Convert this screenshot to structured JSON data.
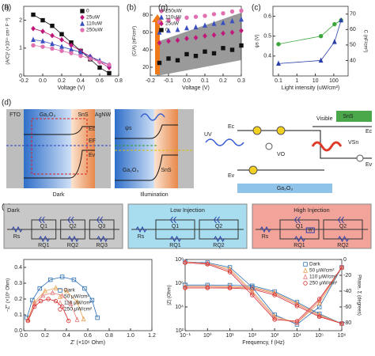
{
  "chart_data": [
    {
      "type": "scatter",
      "label": "(a)",
      "xlabel": "Voltage (V)",
      "ylabel": "(A/C)² (×10¹⁴ cm⁴ F⁻²)",
      "xlim": [
        -0.2,
        0.8
      ],
      "xticks": [
        -0.2,
        {
          "value": 0,
          "label": "0.0"
        },
        0.2,
        0.4,
        0.6,
        0.8
      ],
      "ylim": [
        0,
        2.5
      ],
      "yticks": [
        0,
        1,
        2
      ],
      "lines": true,
      "legend": "top-right",
      "series": [
        {
          "name": "0",
          "color": "#111111",
          "marker": "square",
          "x": [
            -0.1,
            0,
            0.1,
            0.2,
            0.3,
            0.4,
            0.5,
            0.6,
            0.7
          ],
          "values": [
            2.2,
            2.0,
            1.8,
            1.5,
            1.2,
            0.9,
            0.6,
            0.3,
            0.1
          ]
        },
        {
          "name": "25uW",
          "color": "#c0187a",
          "marker": "diamond",
          "x": [
            -0.1,
            0,
            0.1,
            0.2,
            0.3,
            0.4,
            0.5,
            0.6,
            0.7
          ],
          "values": [
            1.7,
            1.6,
            1.45,
            1.3,
            1.1,
            0.9,
            0.7,
            0.5,
            0.3
          ]
        },
        {
          "name": "110uW",
          "color": "#3a4fc0",
          "marker": "triangle",
          "x": [
            -0.1,
            0,
            0.1,
            0.2,
            0.3,
            0.4,
            0.5,
            0.6,
            0.7
          ],
          "values": [
            1.3,
            1.25,
            1.15,
            1.05,
            0.95,
            0.85,
            0.7,
            0.55,
            0.4
          ]
        },
        {
          "name": "250uW",
          "color": "#e070b0",
          "marker": "circle",
          "x": [
            -0.1,
            0,
            0.1,
            0.2,
            0.3,
            0.4,
            0.5,
            0.6,
            0.7
          ],
          "values": [
            1.1,
            1.05,
            0.98,
            0.9,
            0.82,
            0.72,
            0.62,
            0.5,
            0.4
          ]
        }
      ]
    },
    {
      "type": "scatter",
      "label": "(b)",
      "xlabel": "Voltage (V)",
      "ylabel": "(C/A) (nF/cm²)",
      "xlim": [
        -0.2,
        0.3
      ],
      "xticks": [
        -0.2,
        -0.1,
        {
          "value": 0,
          "label": "0.0"
        },
        0.1,
        0.2,
        0.3
      ],
      "ylim": [
        10,
        90
      ],
      "yticks": [
        20,
        40,
        60,
        80
      ],
      "band": true,
      "legend": "top-left",
      "series": [
        {
          "name": "250uW",
          "color": "#e070b0",
          "marker": "circle",
          "x": [
            -0.15,
            -0.1,
            -0.05,
            0,
            0.05,
            0.1,
            0.15,
            0.2,
            0.25,
            0.3
          ],
          "values": [
            72,
            74,
            75,
            77,
            78,
            79,
            81,
            82,
            84,
            85
          ]
        },
        {
          "name": "110uW",
          "color": "#3a4fc0",
          "marker": "triangle",
          "x": [
            -0.15,
            -0.1,
            -0.05,
            0,
            0.05,
            0.1,
            0.15,
            0.2,
            0.25,
            0.3
          ],
          "values": [
            60,
            62,
            63,
            65,
            66,
            68,
            70,
            71,
            73,
            75
          ]
        },
        {
          "name": "25uW",
          "color": "#c0187a",
          "marker": "diamond",
          "x": [
            -0.15,
            -0.1,
            -0.05,
            0,
            0.05,
            0.1,
            0.15,
            0.2,
            0.25,
            0.3
          ],
          "values": [
            48,
            50,
            51,
            53,
            54,
            56,
            57,
            59,
            60,
            62
          ]
        },
        {
          "name": "0",
          "color": "#111111",
          "marker": "square",
          "x": [
            -0.15,
            -0.1,
            -0.05,
            0,
            0.05,
            0.1,
            0.15,
            0.2,
            0.25,
            0.3
          ],
          "values": [
            25,
            30,
            28,
            35,
            33,
            38,
            36,
            42,
            40,
            45
          ]
        }
      ]
    },
    {
      "type": "scatter",
      "label": "(c)",
      "xlabel": "Light intensity (uW/cm²)",
      "ylabel": "ψs (V)",
      "y2label": "C (nF/cm²)",
      "xlog": true,
      "xlim": [
        0.05,
        600
      ],
      "xticks": [
        0.1,
        1,
        10,
        100
      ],
      "ylim": [
        0.3,
        0.65
      ],
      "yticks": [
        0.4,
        0.5,
        0.6
      ],
      "y2lim": [
        30,
        75
      ],
      "y2ticks": [
        40,
        50,
        60,
        70
      ],
      "lines": true,
      "series": [
        {
          "color": "#3aa63a",
          "marker": "circle",
          "x": [
            0.1,
            20,
            110,
            250
          ],
          "values": [
            0.46,
            0.5,
            0.56,
            0.58
          ]
        },
        {
          "color": "#2a3fa8",
          "marker": "triangle",
          "axis": "y2",
          "x": [
            0.1,
            20,
            110,
            250
          ],
          "values": [
            38,
            40,
            52,
            66
          ]
        }
      ]
    },
    {
      "type": "scatter",
      "label": "(f)",
      "xlabel": "Z' (×10⁶ Ohm)",
      "ylabel": "−Z'' (×10⁶ Ohm)",
      "xlim": [
        0,
        1.2
      ],
      "xticks": [
        {
          "value": 0,
          "label": "0.0"
        },
        0.2,
        0.4,
        0.6,
        0.8,
        {
          "value": 1,
          "label": "1.0"
        },
        1.2
      ],
      "ylim": [
        0,
        0.45
      ],
      "yticks": [
        {
          "value": 0,
          "label": "0.0"
        },
        0.1,
        0.2,
        0.3,
        0.4
      ],
      "lines": true,
      "legend": "center-right",
      "series": [
        {
          "name": "Dark",
          "color": "#2a6fb5",
          "marker": "square",
          "open": true,
          "x": [
            0.03,
            0.08,
            0.15,
            0.25,
            0.36,
            0.47,
            0.57,
            0.64,
            0.69
          ],
          "values": [
            0.082,
            0.193,
            0.267,
            0.322,
            0.34,
            0.322,
            0.267,
            0.193,
            0.082
          ]
        },
        {
          "name": "50 μW/cm²",
          "color": "#e8a050",
          "marker": "triangle",
          "open": true,
          "x": [
            0.04,
            0.1,
            0.2,
            0.3,
            0.4,
            0.5,
            0.56
          ],
          "values": [
            0.073,
            0.181,
            0.251,
            0.27,
            0.251,
            0.181,
            0.073
          ]
        },
        {
          "name": "110 μW/cm²",
          "color": "#e87a7a",
          "marker": "triangle",
          "open": true,
          "x": [
            0.04,
            0.1,
            0.18,
            0.27,
            0.36,
            0.44,
            0.5
          ],
          "values": [
            0.069,
            0.169,
            0.222,
            0.24,
            0.222,
            0.169,
            0.069
          ]
        },
        {
          "name": "250 μW/cm²",
          "color": "#d42a2a",
          "marker": "circle",
          "open": true,
          "x": [
            0.04,
            0.1,
            0.16,
            0.23,
            0.3,
            0.36,
            0.42
          ],
          "values": [
            0.062,
            0.152,
            0.187,
            0.2,
            0.187,
            0.152,
            0.062
          ]
        }
      ]
    },
    {
      "type": "scatter",
      "label": "(g)",
      "xlabel": "Frequency, f (Hz)",
      "ylabel": "|Z| (Ohm)",
      "y2label": "Phase, Σ (degrees)",
      "xlog": true,
      "ylog": true,
      "xlim": [
        0.1,
        1000000
      ],
      "xticks": [
        {
          "value": 0.1,
          "label": "10⁻¹"
        },
        {
          "value": 1,
          "label": "10⁰"
        },
        {
          "value": 10,
          "label": "10¹"
        },
        {
          "value": 100,
          "label": "10²"
        },
        {
          "value": 1000,
          "label": "10³"
        },
        {
          "value": 10000,
          "label": "10⁴"
        },
        {
          "value": 100000,
          "label": "10⁵"
        },
        {
          "value": 1000000,
          "label": "10⁶"
        }
      ],
      "ylim": [
        100,
        100000000
      ],
      "yticks": [
        {
          "value": 100,
          "label": "10²"
        },
        {
          "value": 10000,
          "label": "10⁴"
        },
        {
          "value": 1000000,
          "label": "10⁶"
        },
        {
          "value": 100000000,
          "label": "10⁸"
        }
      ],
      "y2lim": [
        -90,
        0
      ],
      "y2ticks": [
        0,
        -20,
        -40,
        -60,
        -80
      ],
      "lines": true,
      "legend": "top-right",
      "series": [
        {
          "name": "Dark",
          "color": "#2a6fb5",
          "marker": "square",
          "open": true,
          "x": [
            0.1,
            1,
            10,
            100,
            1000,
            10000,
            100000,
            1000000
          ],
          "values": [
            700000,
            700000,
            680000,
            600000,
            200000,
            25000,
            2600,
            400
          ]
        },
        {
          "name": "50 μW/cm²",
          "color": "#e8a050",
          "marker": "triangle",
          "open": true,
          "x": [
            0.1,
            1,
            10,
            100,
            1000,
            10000,
            100000,
            1000000
          ],
          "values": [
            550000,
            550000,
            530000,
            460000,
            160000,
            20000,
            2200,
            400
          ]
        },
        {
          "name": "110 μW/cm²",
          "color": "#e87a7a",
          "marker": "triangle",
          "open": true,
          "x": [
            0.1,
            1,
            10,
            100,
            1000,
            10000,
            100000,
            1000000
          ],
          "values": [
            480000,
            480000,
            460000,
            400000,
            130000,
            16000,
            1800,
            400
          ]
        },
        {
          "name": "250 μW/cm²",
          "color": "#d42a2a",
          "marker": "circle",
          "open": true,
          "x": [
            0.1,
            1,
            10,
            100,
            1000,
            10000,
            100000,
            1000000
          ],
          "values": [
            400000,
            400000,
            390000,
            320000,
            100000,
            12000,
            1500,
            400
          ]
        },
        {
          "color": "#2a6fb5",
          "marker": "square",
          "open": true,
          "axis": "y2",
          "x": [
            0.1,
            1,
            10,
            100,
            1000,
            10000,
            100000,
            1000000
          ],
          "values": [
            -3,
            -4,
            -10,
            -35,
            -70,
            -82,
            -60,
            -10
          ]
        },
        {
          "color": "#e8a050",
          "marker": "triangle",
          "open": true,
          "axis": "y2",
          "x": [
            0.1,
            1,
            10,
            100,
            1000,
            10000,
            100000,
            1000000
          ],
          "values": [
            -3,
            -5,
            -12,
            -40,
            -72,
            -80,
            -55,
            -10
          ]
        },
        {
          "color": "#e87a7a",
          "marker": "triangle",
          "open": true,
          "axis": "y2",
          "x": [
            0.1,
            1,
            10,
            100,
            1000,
            10000,
            100000,
            1000000
          ],
          "values": [
            -3,
            -5,
            -14,
            -42,
            -74,
            -80,
            -52,
            -10
          ]
        },
        {
          "color": "#d42a2a",
          "marker": "circle",
          "open": true,
          "axis": "y2",
          "x": [
            0.1,
            1,
            10,
            100,
            1000,
            10000,
            100000,
            1000000
          ],
          "values": [
            -4,
            -6,
            -16,
            -45,
            -76,
            -78,
            -50,
            -10
          ]
        }
      ]
    }
  ],
  "diagram_d": {
    "label": "(d)",
    "layers": [
      "FTO",
      "Ga₂O₃",
      "SnS",
      "AgNW"
    ],
    "levels": [
      "Ec",
      "EF",
      "Ev"
    ],
    "dark": "Dark",
    "illumination": "Illumination",
    "psi": "ψs",
    "ill_layers": [
      "Ga₂O₃",
      "SnS"
    ],
    "schematic": {
      "uv": "UV",
      "visible": "Visible",
      "vo": "VO",
      "vsn": "VSn",
      "sns": "SnS",
      "ga2o3": "Ga₂O₃",
      "ec": "Ec",
      "ev": "Ev",
      "ev2": "Ev",
      "ec2": "Ec"
    }
  },
  "diagram_e": {
    "label": "(e)",
    "circuits": [
      {
        "title": "Dark",
        "elements": [
          "Rs",
          "Q1",
          "Q2",
          "Q3",
          "RQ1",
          "RQ2",
          "RQ3"
        ]
      },
      {
        "title": "Low Injection",
        "elements": [
          "Rs",
          "Q1",
          "Q2",
          "RQ1",
          "RQ2"
        ]
      },
      {
        "title": "High Injection",
        "elements": [
          "Rs",
          "Q1",
          "Q2",
          "W",
          "RQ1",
          "RQ2"
        ]
      }
    ]
  }
}
